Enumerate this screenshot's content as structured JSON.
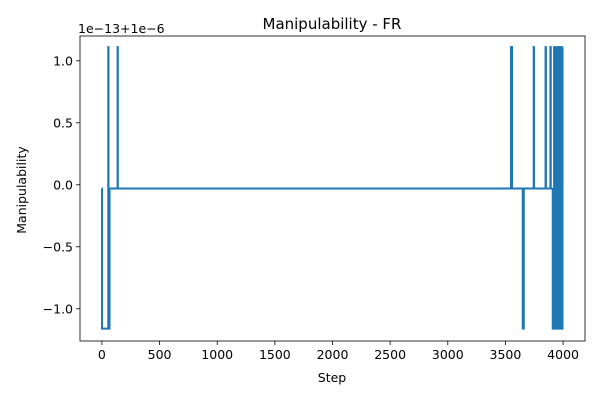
{
  "chart_data": {
    "type": "line",
    "title": "Manipulability - FR",
    "xlabel": "Step",
    "ylabel": "Manipulability",
    "y_offset_label": "1e−13+1e−6",
    "xlim": [
      -190,
      4190
    ],
    "ylim": [
      -1.26,
      1.2
    ],
    "x_ticks": [
      0,
      500,
      1000,
      1500,
      2000,
      2500,
      3000,
      3500,
      4000
    ],
    "x_tick_labels": [
      "0",
      "500",
      "1000",
      "1500",
      "2000",
      "2500",
      "3000",
      "3500",
      "4000"
    ],
    "y_ticks": [
      -1.0,
      -0.5,
      0.0,
      0.5,
      1.0
    ],
    "y_tick_labels": [
      "−1.0",
      "−0.5",
      "0.0",
      "0.5",
      "1.0"
    ],
    "grid": false,
    "color": "#1f77b4",
    "series": [
      {
        "x": [
          0,
          1,
          1,
          55,
          55,
          57,
          57,
          60,
          60,
          63,
          63,
          66,
          66,
          70,
          70,
          136,
          136,
          138,
          138,
          3548,
          3548,
          3551,
          3551,
          3554,
          3554,
          3557,
          3557,
          3650,
          3650,
          3652,
          3652,
          3655,
          3655,
          3659,
          3659,
          3662,
          3662,
          3745,
          3745,
          3748,
          3748,
          3848,
          3848,
          3851,
          3851,
          3890,
          3890,
          3893,
          3893,
          3910,
          3910,
          3913,
          3913,
          3922,
          3922,
          3925,
          3925,
          3935,
          3935,
          3938,
          3938,
          3945,
          3945,
          3948,
          3948,
          3955,
          3955,
          3958,
          3958,
          3965,
          3965,
          3968,
          3968,
          3975,
          3975,
          3978,
          3978,
          3985,
          3985,
          3988,
          3988,
          3995,
          3995,
          3999
        ],
        "y": [
          -0.03,
          -0.03,
          -1.16,
          -1.16,
          1.11,
          1.11,
          -1.16,
          -1.16,
          -0.03,
          -0.03,
          -1.16,
          -1.16,
          -0.03,
          -0.03,
          -0.03,
          -0.03,
          1.11,
          1.11,
          -0.03,
          -0.03,
          1.11,
          1.11,
          -0.03,
          -0.03,
          1.11,
          1.11,
          -0.03,
          -0.03,
          -1.16,
          -1.16,
          -0.03,
          -0.03,
          -1.16,
          -1.16,
          -0.03,
          -0.03,
          -0.03,
          -0.03,
          1.11,
          1.11,
          -0.03,
          -0.03,
          1.11,
          1.11,
          -0.03,
          -0.03,
          1.11,
          1.11,
          -0.03,
          -0.03,
          -1.16,
          -1.16,
          -0.03,
          -0.03,
          1.11,
          1.11,
          -1.16,
          -1.16,
          1.11,
          1.11,
          -1.16,
          -1.16,
          1.11,
          1.11,
          -1.16,
          -1.16,
          1.11,
          1.11,
          -1.16,
          -1.16,
          1.11,
          1.11,
          -1.16,
          -1.16,
          1.11,
          1.11,
          -1.16,
          -1.16,
          1.11,
          1.11,
          -1.16,
          -1.16,
          1.11,
          1.11
        ]
      }
    ]
  }
}
